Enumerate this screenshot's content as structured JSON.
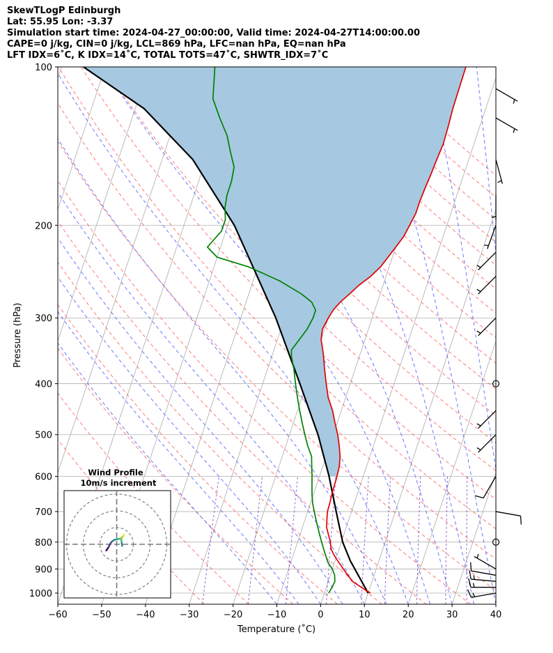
{
  "title_lines": [
    "SkewTLogP Edinburgh",
    "Lat: 55.95   Lon: -3.37",
    "Simulation start time: 2024-04-27_00:00:00, Valid time: 2024-04-27T14:00:00.00",
    "CAPE=0 j/kg, CIN=0 j/kg, LCL=869 hPa, LFC=nan hPa, EQ=nan hPa",
    "LFT IDX=6˚C, K IDX=14˚C, TOTAL TOTS=47˚C, SHWTR_IDX=7˚C"
  ],
  "chart_data": {
    "type": "line",
    "subtype": "skew-T log-P diagram",
    "xlabel": "Temperature (˚C)",
    "ylabel": "Pressure (hPa)",
    "xlim": [
      -60,
      40
    ],
    "ylim": [
      1050,
      100
    ],
    "y_scale": "log",
    "x_ticks": [
      "−60",
      "−50",
      "−40",
      "−30",
      "−20",
      "−10",
      "0",
      "10",
      "20",
      "30",
      "40"
    ],
    "x_tick_values": [
      -60,
      -50,
      -40,
      -30,
      -20,
      -10,
      0,
      10,
      20,
      30,
      40
    ],
    "y_ticks": [
      "100",
      "200",
      "300",
      "400",
      "500",
      "600",
      "700",
      "800",
      "900",
      "1000"
    ],
    "y_tick_values": [
      100,
      200,
      300,
      400,
      500,
      600,
      700,
      800,
      900,
      1000
    ],
    "grid": true,
    "skew_per_decade_in_x_units": 40,
    "series": [
      {
        "role": "temperature",
        "color": "#e00000",
        "points": [
          [
            10.5,
            1000
          ],
          [
            8,
            975
          ],
          [
            5.5,
            950
          ],
          [
            4,
            925
          ],
          [
            2.5,
            900
          ],
          [
            1,
            875
          ],
          [
            -0.5,
            850
          ],
          [
            -1.8,
            825
          ],
          [
            -2.5,
            800
          ],
          [
            -3.5,
            775
          ],
          [
            -4.5,
            750
          ],
          [
            -5,
            725
          ],
          [
            -5.5,
            700
          ],
          [
            -5.6,
            675
          ],
          [
            -5.8,
            650
          ],
          [
            -5.9,
            625
          ],
          [
            -6,
            600
          ],
          [
            -6.2,
            575
          ],
          [
            -6.8,
            550
          ],
          [
            -7.8,
            525
          ],
          [
            -9,
            500
          ],
          [
            -10.5,
            475
          ],
          [
            -12,
            450
          ],
          [
            -14,
            425
          ],
          [
            -15.5,
            400
          ],
          [
            -17,
            375
          ],
          [
            -18.5,
            350
          ],
          [
            -20,
            330
          ],
          [
            -20.5,
            315
          ],
          [
            -20,
            300
          ],
          [
            -19.5,
            290
          ],
          [
            -18.5,
            280
          ],
          [
            -17,
            270
          ],
          [
            -15.5,
            260
          ],
          [
            -13.5,
            250
          ],
          [
            -12,
            240
          ],
          [
            -11,
            230
          ],
          [
            -10,
            220
          ],
          [
            -9,
            210
          ],
          [
            -8.5,
            200
          ],
          [
            -8,
            190
          ],
          [
            -8,
            180
          ],
          [
            -7.8,
            170
          ],
          [
            -7.5,
            160
          ],
          [
            -7.3,
            150
          ],
          [
            -7,
            140
          ],
          [
            -7.2,
            130
          ],
          [
            -7.5,
            120
          ],
          [
            -7.6,
            110
          ],
          [
            -7.7,
            100
          ]
        ]
      },
      {
        "role": "dewpoint",
        "color": "#008000",
        "points": [
          [
            1,
            1000
          ],
          [
            1.3,
            975
          ],
          [
            1.5,
            950
          ],
          [
            1,
            925
          ],
          [
            0,
            900
          ],
          [
            -1.5,
            875
          ],
          [
            -2.5,
            850
          ],
          [
            -3.5,
            825
          ],
          [
            -4.5,
            800
          ],
          [
            -5.5,
            775
          ],
          [
            -6.5,
            750
          ],
          [
            -7.5,
            725
          ],
          [
            -8.5,
            700
          ],
          [
            -9.5,
            675
          ],
          [
            -10.3,
            650
          ],
          [
            -11,
            625
          ],
          [
            -11.7,
            600
          ],
          [
            -12.5,
            575
          ],
          [
            -13.3,
            550
          ],
          [
            -15,
            525
          ],
          [
            -16.5,
            500
          ],
          [
            -18,
            475
          ],
          [
            -19.5,
            450
          ],
          [
            -21,
            425
          ],
          [
            -22.5,
            400
          ],
          [
            -24,
            375
          ],
          [
            -25.5,
            355
          ],
          [
            -26,
            345
          ],
          [
            -25,
            330
          ],
          [
            -24,
            315
          ],
          [
            -23.5,
            300
          ],
          [
            -23.5,
            290
          ],
          [
            -25,
            280
          ],
          [
            -28,
            270
          ],
          [
            -34,
            255
          ],
          [
            -42,
            240
          ],
          [
            -50,
            230
          ],
          [
            -53,
            220
          ],
          [
            -51,
            205
          ],
          [
            -51,
            195
          ],
          [
            -52,
            185
          ],
          [
            -52.5,
            175
          ],
          [
            -52.5,
            165
          ],
          [
            -53,
            155
          ],
          [
            -55,
            145
          ],
          [
            -57,
            135
          ],
          [
            -60,
            125
          ],
          [
            -63,
            115
          ],
          [
            -65,
            100
          ]
        ]
      },
      {
        "role": "parcel",
        "color": "#000000",
        "points": [
          [
            10,
            1000
          ],
          [
            3.5,
            869
          ],
          [
            0.3,
            800
          ],
          [
            -3.5,
            700
          ],
          [
            -7.8,
            600
          ],
          [
            -13.5,
            500
          ],
          [
            -21.5,
            400
          ],
          [
            -32,
            300
          ],
          [
            -48.5,
            200
          ],
          [
            -63,
            150
          ],
          [
            -78,
            120
          ],
          [
            -95,
            100
          ]
        ]
      }
    ],
    "shading": {
      "between": [
        "temperature",
        "parcel"
      ],
      "color": "#a6c9e1",
      "pressure_range": [
        600,
        100
      ]
    },
    "reference_lines": {
      "isotherms": {
        "color": "#aaaaaa",
        "step": 10
      },
      "dry_adiabats": {
        "color": "#ff6060",
        "style": "dashed"
      },
      "moist_adiabats": {
        "color": "#4f5fff",
        "style": "dashed"
      },
      "mixing_ratio": {
        "color": "#8855cc",
        "style": "dashed"
      }
    },
    "wind_barbs": [
      {
        "p": 1000,
        "speed_kt": 15,
        "dir": 260
      },
      {
        "p": 975,
        "speed_kt": 15,
        "dir": 270
      },
      {
        "p": 950,
        "speed_kt": 15,
        "dir": 275
      },
      {
        "p": 925,
        "speed_kt": 10,
        "dir": 280
      },
      {
        "p": 900,
        "speed_kt": 5,
        "dir": 300
      },
      {
        "p": 800,
        "speed_kt": 0,
        "dir": 0
      },
      {
        "p": 700,
        "speed_kt": 10,
        "dir": 100
      },
      {
        "p": 600,
        "speed_kt": 10,
        "dir": 210
      },
      {
        "p": 500,
        "speed_kt": 5,
        "dir": 225
      },
      {
        "p": 450,
        "speed_kt": 5,
        "dir": 225
      },
      {
        "p": 400,
        "speed_kt": 0,
        "dir": 0
      },
      {
        "p": 300,
        "speed_kt": 5,
        "dir": 225
      },
      {
        "p": 250,
        "speed_kt": 5,
        "dir": 225
      },
      {
        "p": 225,
        "speed_kt": 5,
        "dir": 225
      },
      {
        "p": 200,
        "speed_kt": 5,
        "dir": 200
      },
      {
        "p": 175,
        "speed_kt": 5,
        "dir": 180
      },
      {
        "p": 150,
        "speed_kt": 5,
        "dir": 165
      },
      {
        "p": 125,
        "speed_kt": 5,
        "dir": 120
      },
      {
        "p": 110,
        "speed_kt": 5,
        "dir": 120
      }
    ]
  },
  "inset": {
    "title_lines": [
      "Wind Profile",
      "10m/s increment"
    ],
    "hodograph_points": [
      [
        -2.5,
        -1.5
      ],
      [
        -2,
        -0.8
      ],
      [
        -1.6,
        0
      ],
      [
        -1.2,
        0.6
      ],
      [
        -0.7,
        1
      ],
      [
        0,
        1.2
      ],
      [
        0.6,
        1.3
      ],
      [
        1,
        1.4
      ],
      [
        1.4,
        1.8
      ],
      [
        1.8,
        2.3
      ],
      [
        1.5,
        1.9
      ],
      [
        1.1,
        1.1
      ],
      [
        1.2,
        0.3
      ],
      [
        1.3,
        -0.4
      ]
    ],
    "rings": [
      1,
      2,
      3
    ]
  }
}
